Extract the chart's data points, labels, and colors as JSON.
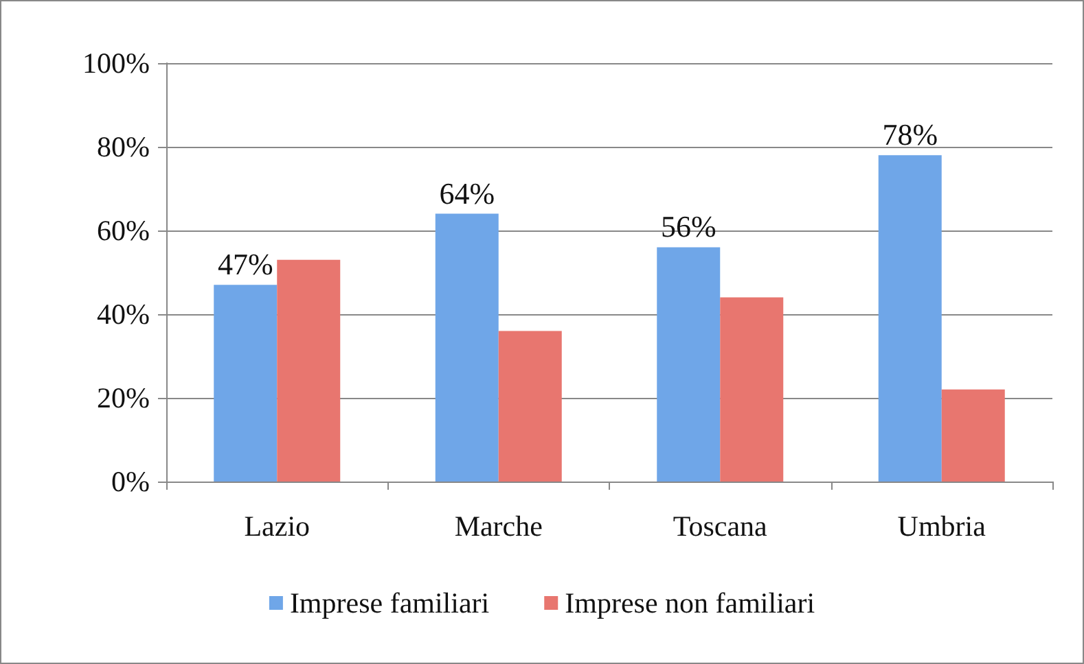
{
  "chart_data": {
    "type": "bar",
    "categories": [
      "Lazio",
      "Marche",
      "Toscana",
      "Umbria"
    ],
    "series": [
      {
        "name": "Imprese familiari",
        "color": "#6fa6e8",
        "values": [
          47,
          64,
          56,
          78
        ],
        "value_labels": [
          "47%",
          "64%",
          "56%",
          "78%"
        ]
      },
      {
        "name": "Imprese non familiari",
        "color": "#e8766f",
        "values": [
          53,
          36,
          44,
          22
        ]
      }
    ],
    "ylim": [
      0,
      100
    ],
    "yticks": [
      {
        "value": 0,
        "label": "0%"
      },
      {
        "value": 20,
        "label": "20%"
      },
      {
        "value": 40,
        "label": "40%"
      },
      {
        "value": 60,
        "label": "60%"
      },
      {
        "value": 80,
        "label": "80%"
      },
      {
        "value": 100,
        "label": "100%"
      }
    ],
    "grid": "y",
    "legend": "bottom"
  }
}
